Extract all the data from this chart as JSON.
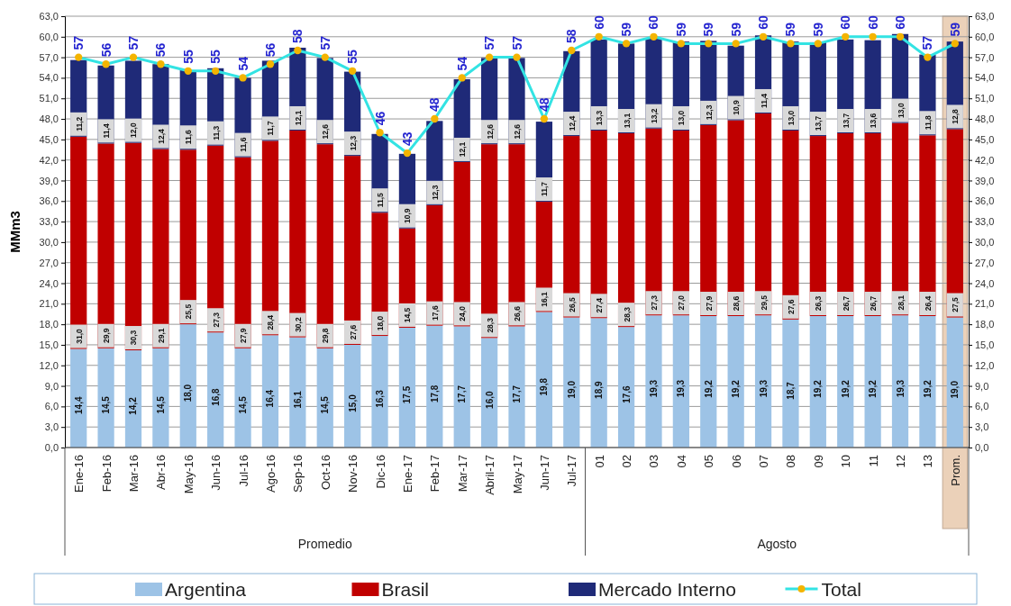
{
  "chart_data": {
    "type": "bar",
    "stacked": true,
    "ylabel": "MMm3",
    "categories": [
      "Ene-16",
      "Feb-16",
      "Mar-16",
      "Abr-16",
      "May-16",
      "Jun-16",
      "Jul-16",
      "Ago-16",
      "Sep-16",
      "Oct-16",
      "Nov-16",
      "Dic-16",
      "Ene-17",
      "Feb-17",
      "Mar-17",
      "Abril-17",
      "May-17",
      "Jun-17",
      "Jul-17",
      "01",
      "02",
      "03",
      "04",
      "05",
      "06",
      "07",
      "08",
      "09",
      "10",
      "11",
      "12",
      "13",
      "Prom."
    ],
    "series": [
      {
        "name": "Argentina",
        "color": "#9dc3e6",
        "values": [
          14.4,
          14.5,
          14.2,
          14.5,
          18.0,
          16.8,
          14.5,
          16.4,
          16.1,
          14.5,
          15.0,
          16.3,
          17.5,
          17.8,
          17.7,
          16.0,
          17.7,
          19.8,
          19.0,
          18.9,
          17.6,
          19.3,
          19.3,
          19.2,
          19.2,
          19.3,
          18.7,
          19.2,
          19.2,
          19.2,
          19.3,
          19.2,
          19.0
        ],
        "value_labels": [
          "14,4",
          "14,5",
          "14,2",
          "14,5",
          "18,0",
          "16,8",
          "14,5",
          "16,4",
          "16,1",
          "14,5",
          "15,0",
          "16,3",
          "17,5",
          "17,8",
          "17,7",
          "16,0",
          "17,7",
          "19,8",
          "19,0",
          "18,9",
          "17,6",
          "19,3",
          "19,3",
          "19,2",
          "19,2",
          "19,3",
          "18,7",
          "19,2",
          "19,2",
          "19,2",
          "19,3",
          "19,2",
          "19,0"
        ]
      },
      {
        "name": "Brasil",
        "color": "#c00000",
        "values": [
          31.0,
          29.9,
          30.3,
          29.1,
          25.5,
          27.3,
          27.9,
          28.4,
          30.2,
          29.8,
          27.6,
          18.0,
          14.5,
          17.6,
          24.0,
          28.3,
          26.6,
          16.1,
          26.5,
          27.4,
          28.3,
          27.3,
          27.0,
          27.9,
          28.6,
          29.5,
          27.6,
          26.3,
          26.7,
          26.7,
          28.1,
          26.4,
          27.5
        ],
        "value_labels": [
          "31,0",
          "29,9",
          "30,3",
          "29,1",
          "25,5",
          "27,3",
          "27,9",
          "28,4",
          "30,2",
          "29,8",
          "27,6",
          "18,0",
          "14,5",
          "17,6",
          "24,0",
          "28,3",
          "26,6",
          "16,1",
          "26,5",
          "27,4",
          "28,3",
          "27,3",
          "27,0",
          "27,9",
          "28,6",
          "29,5",
          "27,6",
          "26,3",
          "26,7",
          "26,7",
          "28,1",
          "26,4",
          "27,5"
        ]
      },
      {
        "name": "Mercado Interno",
        "color": "#1f2a78",
        "values": [
          11.2,
          11.4,
          12.0,
          12.4,
          11.6,
          11.3,
          11.6,
          11.7,
          12.1,
          12.6,
          12.3,
          11.5,
          10.9,
          12.3,
          12.1,
          12.6,
          12.6,
          11.7,
          12.4,
          13.3,
          13.1,
          13.2,
          13.0,
          12.3,
          10.9,
          11.4,
          13.0,
          13.7,
          13.7,
          13.6,
          13.0,
          11.8,
          12.8
        ],
        "value_labels": [
          "11,2",
          "11,4",
          "12,0",
          "12,4",
          "11,6",
          "11,3",
          "11,6",
          "11,7",
          "12,1",
          "12,6",
          "12,3",
          "11,5",
          "10,9",
          "12,3",
          "12,1",
          "12,6",
          "12,6",
          "11,7",
          "12,4",
          "13,3",
          "13,1",
          "13,2",
          "13,0",
          "12,3",
          "10,9",
          "11,4",
          "13,0",
          "13,7",
          "13,7",
          "13,6",
          "13,0",
          "11,8",
          "12,8"
        ]
      },
      {
        "name": "Total",
        "type": "line",
        "color": "#33e3e3",
        "marker": "circle",
        "values": [
          57,
          56,
          57,
          56,
          55,
          55,
          54,
          56,
          58,
          57,
          55,
          46,
          43,
          48,
          54,
          57,
          57,
          48,
          58,
          60,
          59,
          60,
          59,
          59,
          59,
          60,
          59,
          59,
          60,
          60,
          60,
          57,
          59
        ]
      }
    ],
    "ylim": [
      0,
      63
    ],
    "y2lim": [
      0,
      63
    ],
    "yticks": [
      {
        "value": 0,
        "label": "0,0"
      },
      {
        "value": 3,
        "label": "3,0"
      },
      {
        "value": 6,
        "label": "6,0"
      },
      {
        "value": 9,
        "label": "9,0"
      },
      {
        "value": 12,
        "label": "12,0"
      },
      {
        "value": 15,
        "label": "15,0"
      },
      {
        "value": 18,
        "label": "18,0"
      },
      {
        "value": 21,
        "label": "21,0"
      },
      {
        "value": 24,
        "label": "24,0"
      },
      {
        "value": 27,
        "label": "27,0"
      },
      {
        "value": 30,
        "label": "30,0"
      },
      {
        "value": 33,
        "label": "33,0"
      },
      {
        "value": 36,
        "label": "36,0"
      },
      {
        "value": 39,
        "label": "39,0"
      },
      {
        "value": 42,
        "label": "42,0"
      },
      {
        "value": 45,
        "label": "45,0"
      },
      {
        "value": 48,
        "label": "48,0"
      },
      {
        "value": 51,
        "label": "51,0"
      },
      {
        "value": 54,
        "label": "54,0"
      },
      {
        "value": 57,
        "label": "57,0"
      },
      {
        "value": 60,
        "label": "60,0"
      },
      {
        "value": 63,
        "label": "63,0"
      }
    ],
    "y2ticks": [
      {
        "value": 0,
        "label": "0,0"
      },
      {
        "value": 3,
        "label": "3,0"
      },
      {
        "value": 6,
        "label": "6,0"
      },
      {
        "value": 9,
        "label": "9,0"
      },
      {
        "value": 12,
        "label": "12,0"
      },
      {
        "value": 15,
        "label": "15,0"
      },
      {
        "value": 18,
        "label": "18,0"
      },
      {
        "value": 21,
        "label": "21,0"
      },
      {
        "value": 24,
        "label": "24,0"
      },
      {
        "value": 27,
        "label": "27,0"
      },
      {
        "value": 30,
        "label": "30,0"
      },
      {
        "value": 33,
        "label": "33,0"
      },
      {
        "value": 36,
        "label": "36,0"
      },
      {
        "value": 39,
        "label": "39,0"
      },
      {
        "value": 42,
        "label": "42,0"
      },
      {
        "value": 45,
        "label": "45,0"
      },
      {
        "value": 48,
        "label": "48,0"
      },
      {
        "value": 51,
        "label": "51,0"
      },
      {
        "value": 54,
        "label": "54,0"
      },
      {
        "value": 57,
        "label": "57,0"
      },
      {
        "value": 60,
        "label": "60,0"
      },
      {
        "value": 63,
        "label": "63,0"
      }
    ],
    "bands": [
      {
        "axis": "x",
        "from": "Prom.",
        "to": "Prom.",
        "color": "#e8c9ad"
      }
    ],
    "annotations": [
      "Promedio",
      "Agosto"
    ],
    "data_labels": true,
    "grid": "y",
    "legend": "bottom"
  }
}
